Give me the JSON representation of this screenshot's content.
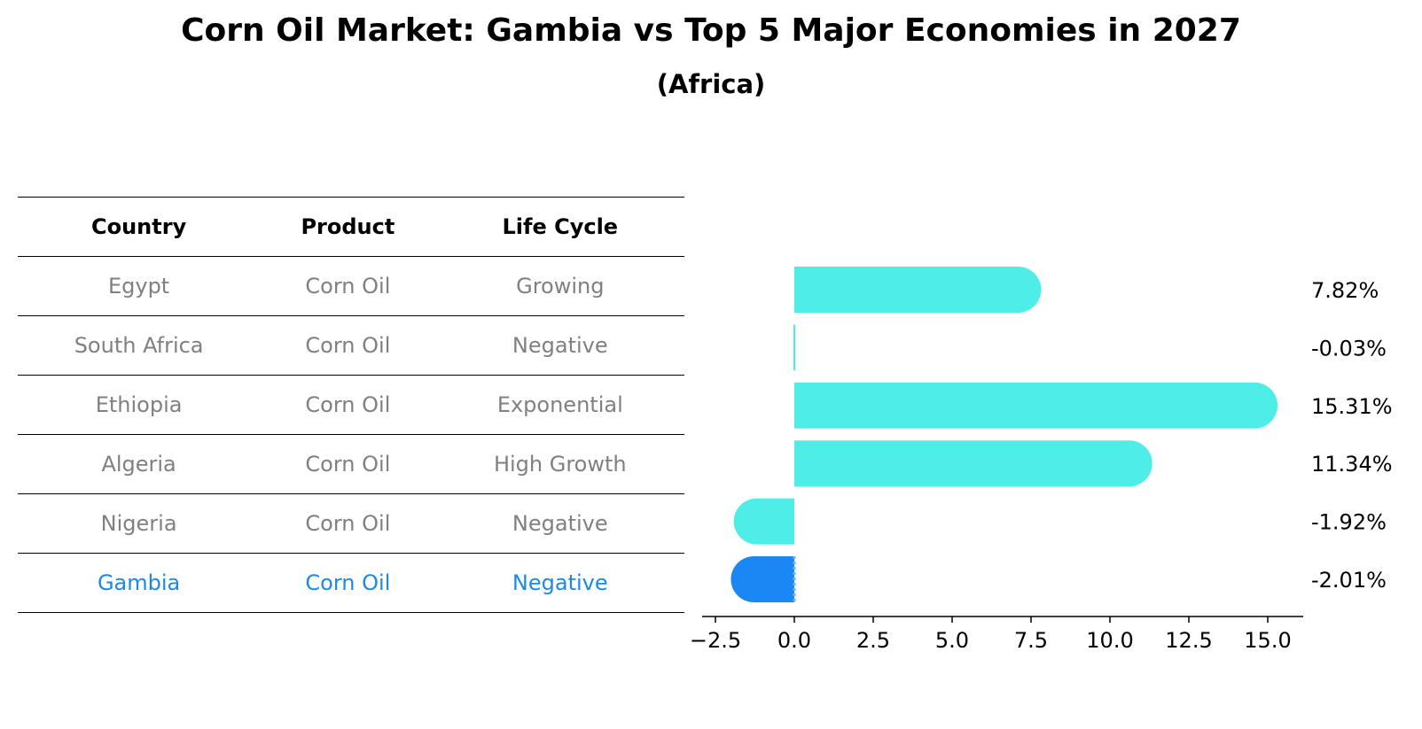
{
  "title": "Corn Oil Market: Gambia vs Top 5 Major Economies in 2027",
  "subtitle": "(Africa)",
  "table": {
    "headers": [
      "Country",
      "Product",
      "Life Cycle"
    ],
    "rows": [
      {
        "country": "Egypt",
        "product": "Corn Oil",
        "life_cycle": "Growing"
      },
      {
        "country": "South Africa",
        "product": "Corn Oil",
        "life_cycle": "Negative"
      },
      {
        "country": "Ethiopia",
        "product": "Corn Oil",
        "life_cycle": "Exponential"
      },
      {
        "country": "Algeria",
        "product": "Corn Oil",
        "life_cycle": "High Growth"
      },
      {
        "country": "Nigeria",
        "product": "Corn Oil",
        "life_cycle": "Negative"
      },
      {
        "country": "Gambia",
        "product": "Corn Oil",
        "life_cycle": "Negative"
      }
    ]
  },
  "colors": {
    "bar": "#4eede8",
    "highlight_bar": "#1a87f5",
    "highlight_text": "#1e88e5",
    "muted_text": "#808080"
  },
  "chart_data": {
    "type": "bar",
    "orientation": "horizontal",
    "title": "Corn Oil Market: Gambia vs Top 5 Major Economies in 2027",
    "subtitle": "(Africa)",
    "categories": [
      "Egypt",
      "South Africa",
      "Ethiopia",
      "Algeria",
      "Nigeria",
      "Gambia"
    ],
    "values": [
      7.82,
      -0.03,
      15.31,
      11.34,
      -1.92,
      -2.01
    ],
    "value_labels": [
      "7.82%",
      "-0.03%",
      "15.31%",
      "11.34%",
      "-1.92%",
      "-2.01%"
    ],
    "highlight": "Gambia",
    "xlim": [
      -2.97,
      16.2
    ],
    "xticks": [
      -2.5,
      0.0,
      2.5,
      5.0,
      7.5,
      10.0,
      12.5,
      15.0
    ],
    "xtick_labels": [
      "−2.5",
      "0.0",
      "2.5",
      "5.0",
      "7.5",
      "10.0",
      "12.5",
      "15.0"
    ],
    "xlabel": "",
    "ylabel": "",
    "grid": false
  }
}
